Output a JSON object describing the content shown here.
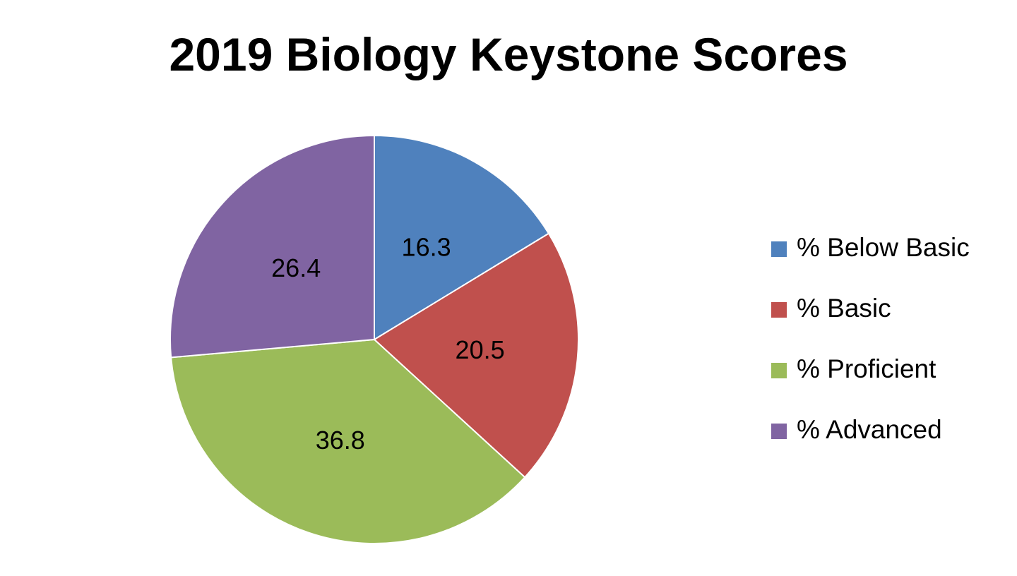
{
  "chart_data": {
    "type": "pie",
    "title": "2019 Biology Keystone Scores",
    "categories": [
      "% Below Basic",
      "% Basic",
      "% Proficient",
      "% Advanced"
    ],
    "values": [
      16.3,
      20.5,
      36.8,
      26.4
    ],
    "data_labels": [
      "16.3",
      "20.5",
      "36.8",
      "26.4"
    ],
    "colors": [
      "#4f81bd",
      "#c0504d",
      "#9bbb59",
      "#8064a2"
    ],
    "start_angle": "12 o'clock",
    "direction": "clockwise",
    "legend_position": "right"
  }
}
